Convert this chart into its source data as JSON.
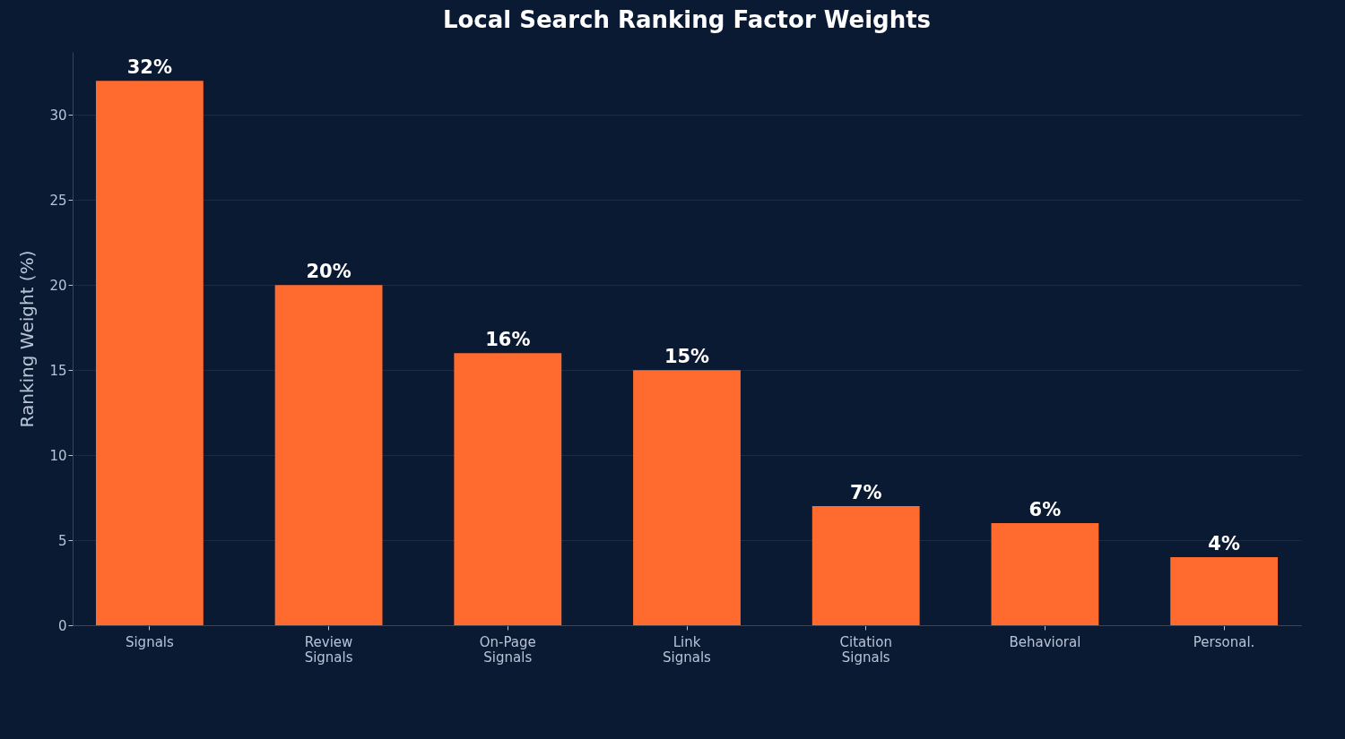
{
  "chart_data": {
    "type": "bar",
    "title": "Local Search Ranking Factor Weights",
    "ylabel": "Ranking Weight (%)",
    "categories": [
      "Signals",
      "Review Signals",
      "On-Page Signals",
      "Link Signals",
      "Citation Signals",
      "Behavioral",
      "Personal."
    ],
    "values": [
      32,
      20,
      16,
      15,
      7,
      6,
      4
    ],
    "value_labels": [
      "32%",
      "20%",
      "16%",
      "15%",
      "7%",
      "6%",
      "4%"
    ],
    "color": "#ff6b2e",
    "ylim": [
      0,
      33.7
    ],
    "yticks": [
      0,
      5,
      10,
      15,
      20,
      25,
      30
    ],
    "grid": "y"
  }
}
